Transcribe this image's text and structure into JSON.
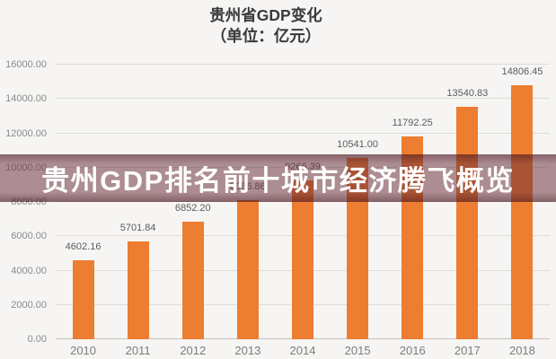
{
  "page": {
    "background_color": "#f6f5f3"
  },
  "chart": {
    "title_line1": "贵州省GDP变化",
    "title_line2": "（单位：亿元）"
  },
  "banner": {
    "text": "贵州GDP排名前十城市经济腾飞概览",
    "text_color": "#ffffff",
    "overlay_color": "#5a1c28",
    "overlay_gradient": "linear-gradient(180deg, rgba(73,20,31,0.66) 0%, rgba(104,45,56,0.52) 20%, rgba(104,45,56,0.52) 80%, rgba(73,20,31,0.66) 100%)"
  },
  "chart_data": {
    "type": "bar",
    "title": "贵州省GDP变化（单位：亿元）",
    "xlabel": "",
    "ylabel": "",
    "categories": [
      "2010",
      "2011",
      "2012",
      "2013",
      "2014",
      "2015",
      "2016",
      "2017",
      "2018"
    ],
    "values": [
      4602.16,
      5701.84,
      6852.2,
      8086.86,
      9266.39,
      10541.0,
      11792.25,
      13540.83,
      14806.45
    ],
    "labels": [
      "4602.16",
      "5701.84",
      "6852.20",
      "8086.86",
      "9266.39",
      "10541.00",
      "11792.25",
      "13540.83",
      "14806.45"
    ],
    "ylim": [
      0,
      16000
    ],
    "ytick_values": [
      0,
      2000,
      4000,
      6000,
      8000,
      10000,
      12000,
      14000,
      16000
    ],
    "ytick_labels": [
      "0.00",
      "2000.00",
      "4000.00",
      "6000.00",
      "8000.00",
      "10000.00",
      "12000.00",
      "14000.00",
      "16000.00"
    ],
    "bar_color": "#ED7D31",
    "grid": true,
    "legend": "none",
    "note": "Bars for 2013 and 2014 value labels are partially obscured by the translucent headline banner overlay."
  }
}
